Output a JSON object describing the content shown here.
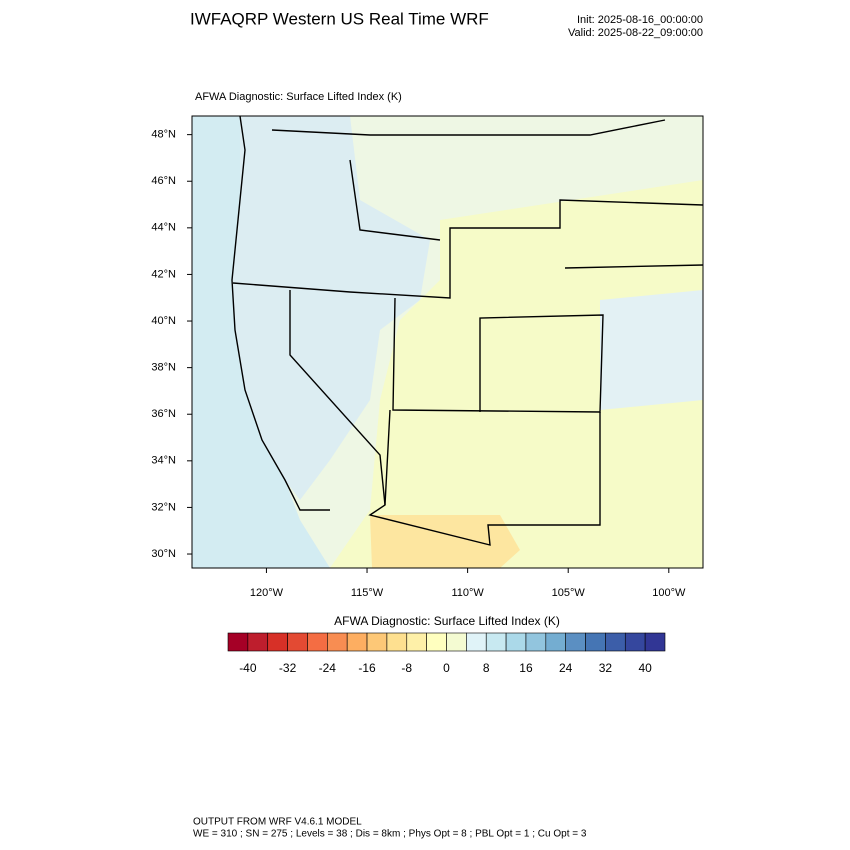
{
  "header": {
    "title": "IWFAQRP Western US Real Time WRF",
    "init": "Init: 2025-08-16_00:00:00",
    "valid": "Valid: 2025-08-22_09:00:00"
  },
  "map": {
    "title": "AFWA Diagnostic: Surface Lifted Index   (K)",
    "lon_lim": [
      -123.7,
      -98.3
    ],
    "lat_lim": [
      29.4,
      48.8
    ],
    "lat_ticks": [
      {
        "value": 48,
        "label": "48°N"
      },
      {
        "value": 46,
        "label": "46°N"
      },
      {
        "value": 44,
        "label": "44°N"
      },
      {
        "value": 42,
        "label": "42°N"
      },
      {
        "value": 40,
        "label": "40°N"
      },
      {
        "value": 38,
        "label": "38°N"
      },
      {
        "value": 36,
        "label": "36°N"
      },
      {
        "value": 34,
        "label": "34°N"
      },
      {
        "value": 32,
        "label": "32°N"
      },
      {
        "value": 30,
        "label": "30°N"
      }
    ],
    "lon_ticks": [
      {
        "value": -120,
        "label": "120°W"
      },
      {
        "value": -115,
        "label": "115°W"
      },
      {
        "value": -110,
        "label": "110°W"
      },
      {
        "value": -105,
        "label": "105°W"
      },
      {
        "value": -100,
        "label": "100°W"
      }
    ]
  },
  "colorbar": {
    "title": "AFWA Diagnostic: Surface Lifted Index  (K)",
    "lim": [
      -44,
      44
    ],
    "ticks": [
      -40,
      -32,
      -24,
      -16,
      -8,
      0,
      8,
      16,
      24,
      32,
      40
    ],
    "colors": [
      "#a50026",
      "#be1e2d",
      "#d73027",
      "#e34a33",
      "#f46d43",
      "#f88d52",
      "#fdae61",
      "#fdc877",
      "#fee090",
      "#fef0a8",
      "#ffffbf",
      "#f4fbd2",
      "#e0f3f8",
      "#c8e9f1",
      "#abd9e9",
      "#92c5de",
      "#74add1",
      "#5b8fc2",
      "#4575b4",
      "#3c5ea9",
      "#35479e",
      "#313695"
    ]
  },
  "footer": {
    "line1": "OUTPUT FROM WRF V4.6.1 MODEL",
    "line2": "WE = 310 ; SN = 275 ; Levels = 38 ; Dis = 8km ; Phys Opt = 8 ; PBL Opt = 1 ; Cu Opt = 3"
  }
}
